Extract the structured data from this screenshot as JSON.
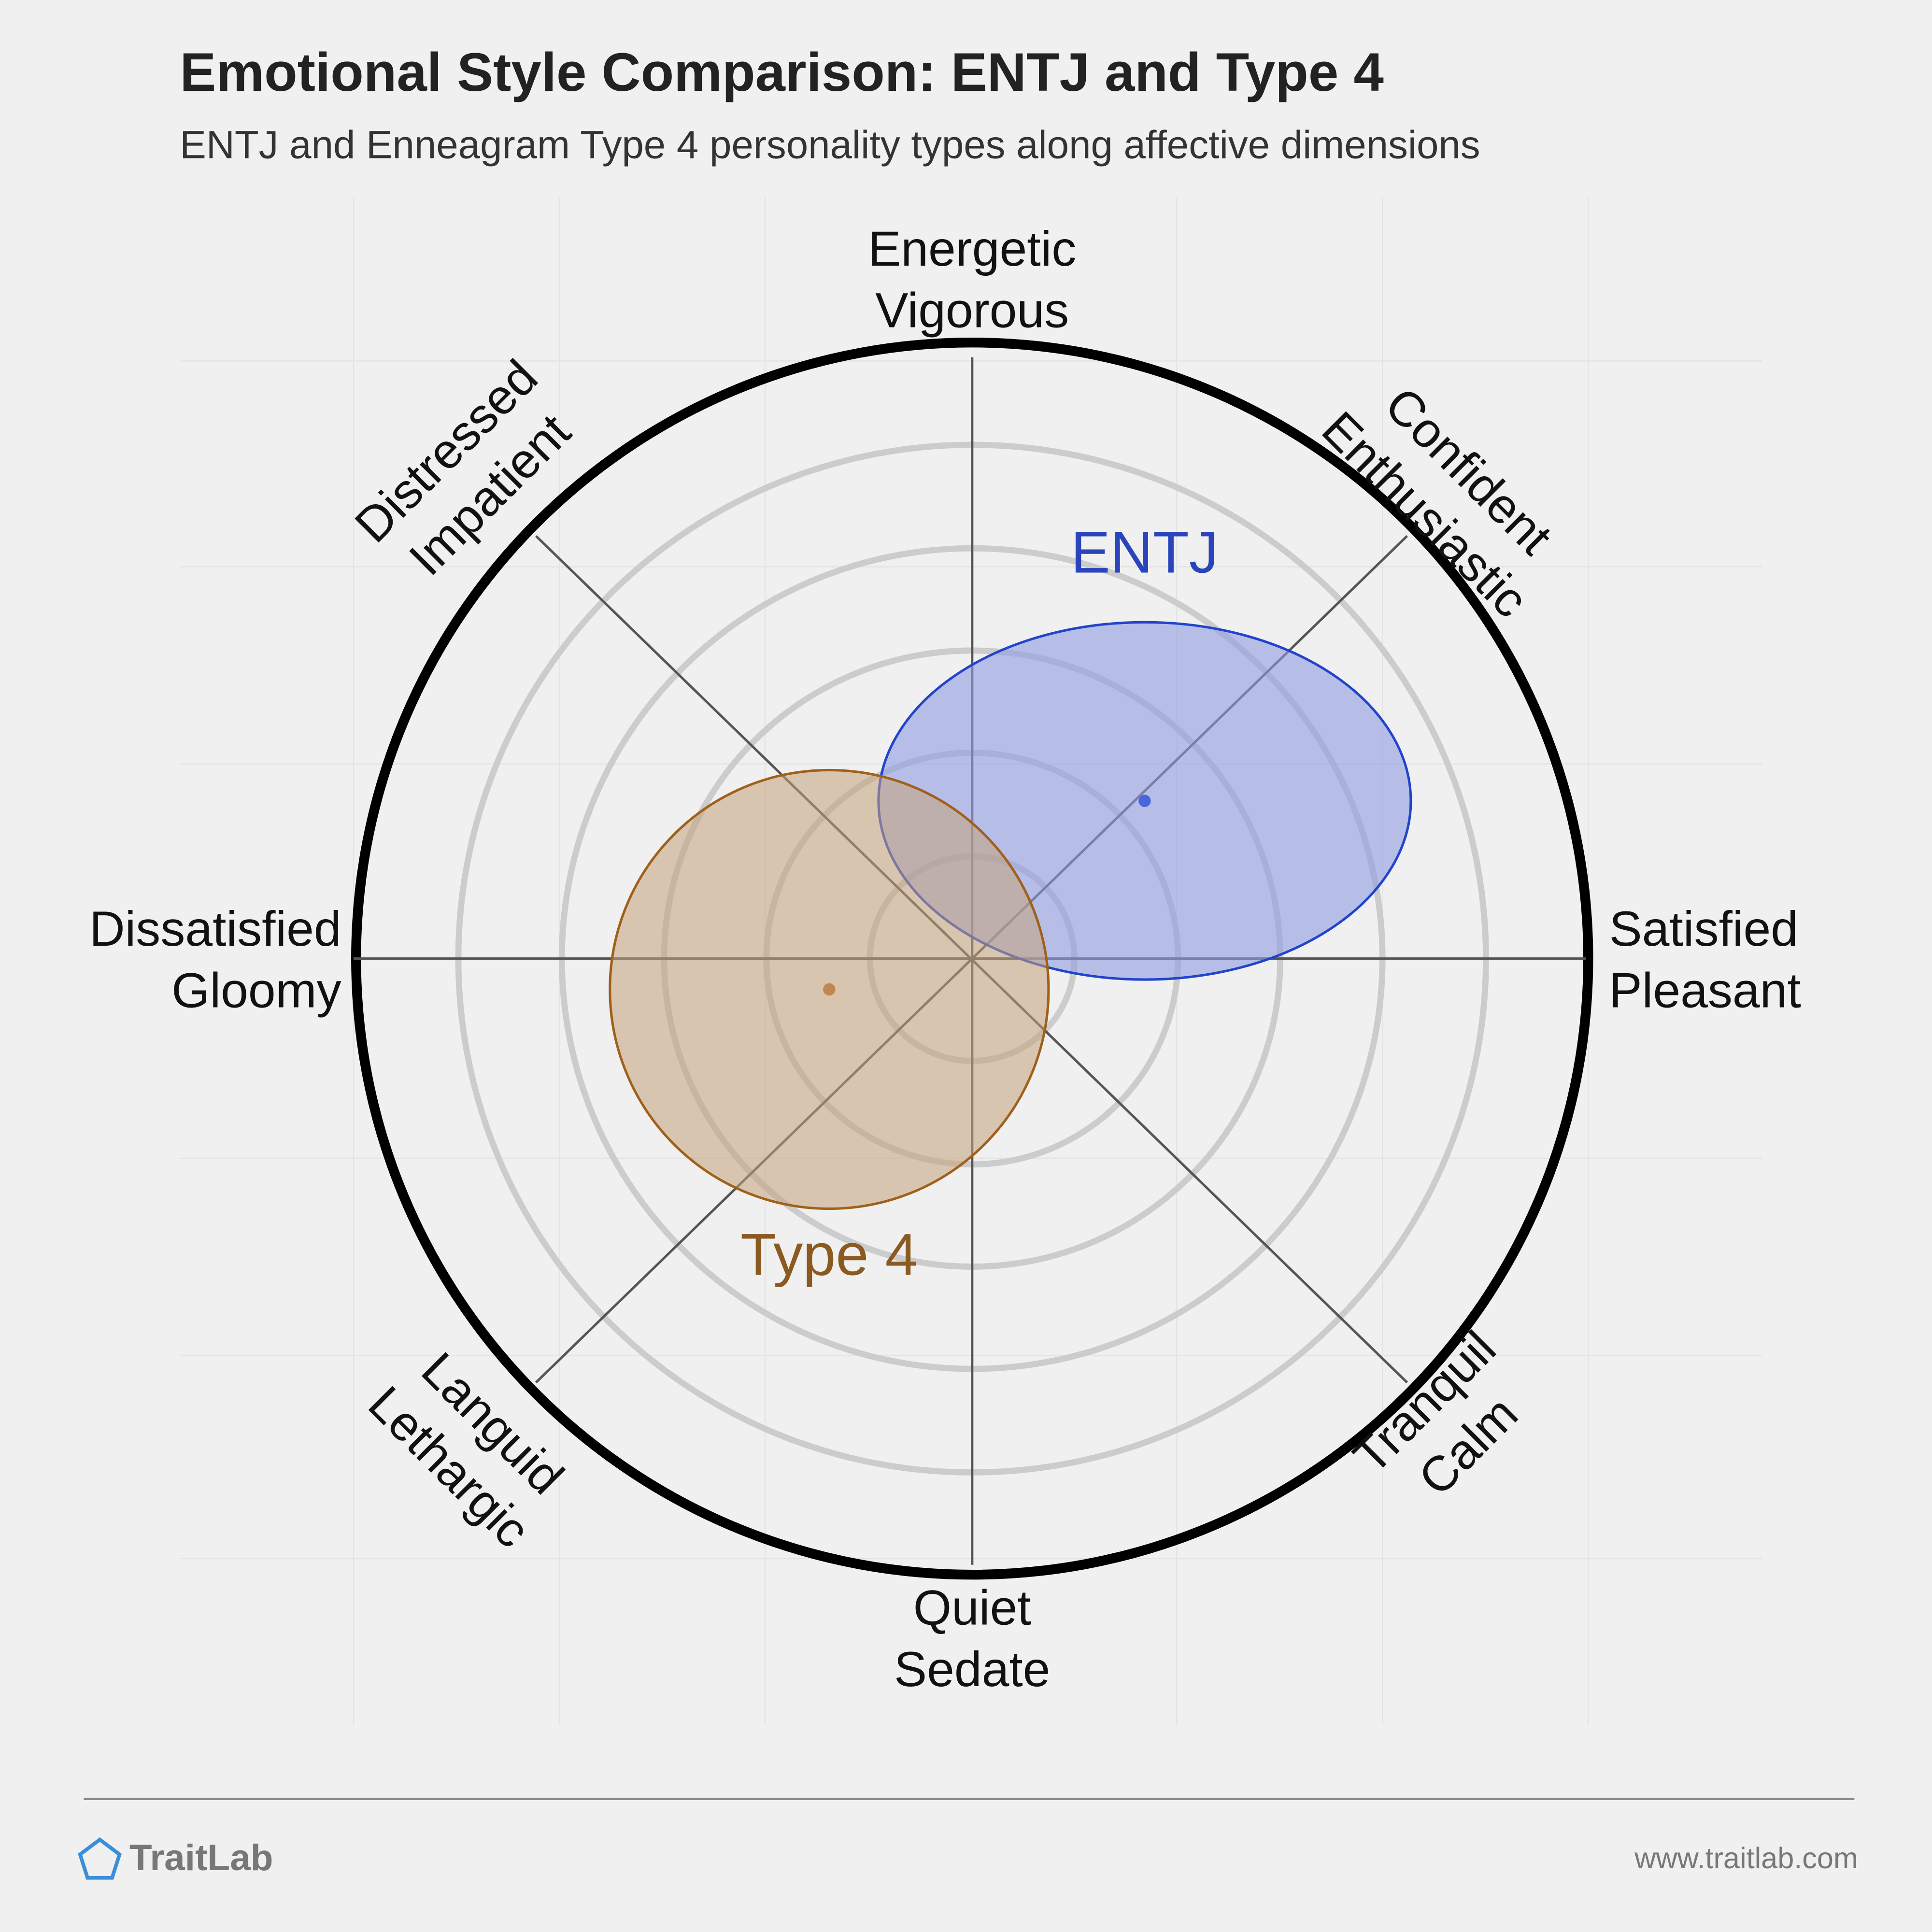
{
  "header": {
    "title": "Emotional Style Comparison: ENTJ and Type 4",
    "subtitle": "ENTJ and Enneagram Type 4 personality types along affective dimensions"
  },
  "axes": [
    {
      "lines": [
        "Energetic",
        "Vigorous"
      ]
    },
    {
      "lines": [
        "Confident",
        "Enthusiastic"
      ]
    },
    {
      "lines": [
        "Satisfied",
        "Pleasant"
      ]
    },
    {
      "lines": [
        "Tranquil",
        "Calm"
      ]
    },
    {
      "lines": [
        "Quiet",
        "Sedate"
      ]
    },
    {
      "lines": [
        "Languid",
        "Lethargic"
      ]
    },
    {
      "lines": [
        "Dissatisfied",
        "Gloomy"
      ]
    },
    {
      "lines": [
        "Distressed",
        "Impatient"
      ]
    }
  ],
  "groups": [
    {
      "label": "ENTJ"
    },
    {
      "label": "Type 4"
    }
  ],
  "footer": {
    "brand": "TraitLab",
    "url": "www.traitlab.com"
  }
}
